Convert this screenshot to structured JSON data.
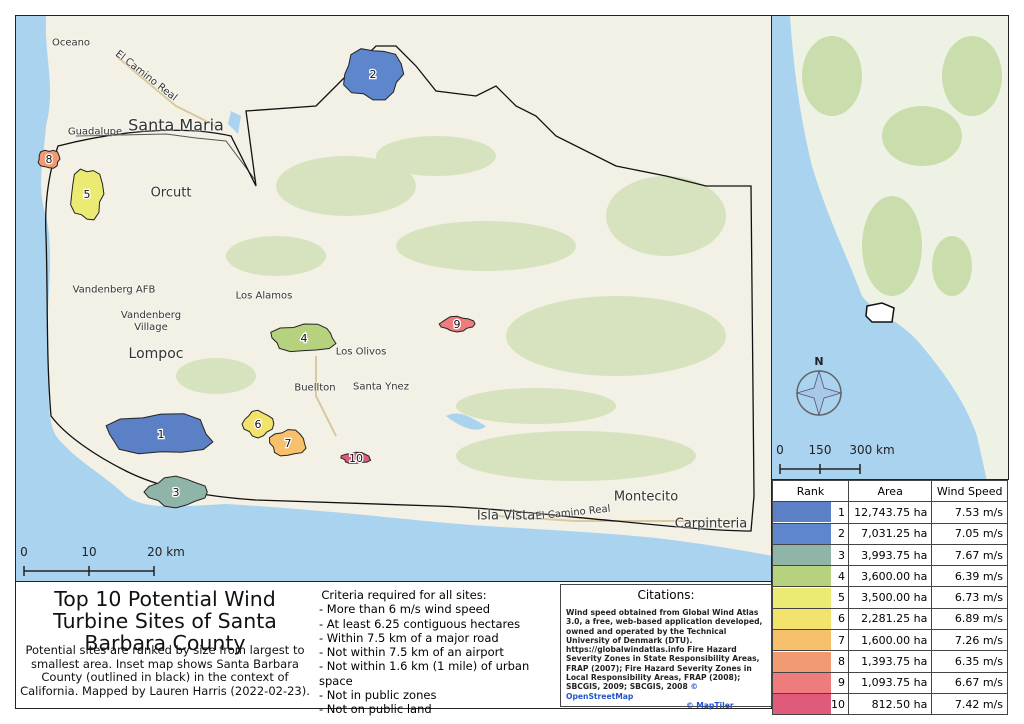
{
  "map": {
    "places": [
      "Oceano",
      "Santa Maria",
      "Guadalupe",
      "Orcutt",
      "Vandenberg AFB",
      "Los Alamos",
      "Vandenberg Village",
      "Lompoc",
      "Los Olivos",
      "Buellton",
      "Santa Ynez",
      "Isla Vista",
      "Montecito",
      "Carpinteria"
    ],
    "roads": [
      "El Camino Real",
      "El Camino Real"
    ],
    "scale": [
      "0",
      "10",
      "20 km"
    ]
  },
  "inset": {
    "compass": "N",
    "scale": [
      "0",
      "150",
      "300 km"
    ]
  },
  "table": {
    "headers": [
      "Rank",
      "Area",
      "Wind Speed"
    ],
    "rows": [
      {
        "rank": 1,
        "color": "#5b80c6",
        "area": "12,743.75 ha",
        "wind": "7.53 m/s"
      },
      {
        "rank": 2,
        "color": "#5d86cc",
        "area": "7,031.25 ha",
        "wind": "7.05 m/s"
      },
      {
        "rank": 3,
        "color": "#8fb5a8",
        "area": "3,993.75 ha",
        "wind": "7.67 m/s"
      },
      {
        "rank": 4,
        "color": "#b6d27e",
        "area": "3,600.00 ha",
        "wind": "6.39 m/s"
      },
      {
        "rank": 5,
        "color": "#ebeb74",
        "area": "3,500.00 ha",
        "wind": "6.73 m/s"
      },
      {
        "rank": 6,
        "color": "#f1e36c",
        "area": "2,281.25 ha",
        "wind": "6.89 m/s"
      },
      {
        "rank": 7,
        "color": "#f7c06c",
        "area": "1,600.00 ha",
        "wind": "7.26 m/s"
      },
      {
        "rank": 8,
        "color": "#f29b73",
        "area": "1,393.75 ha",
        "wind": "6.35 m/s"
      },
      {
        "rank": 9,
        "color": "#ee7c7d",
        "area": "1,093.75 ha",
        "wind": "6.67 m/s"
      },
      {
        "rank": 10,
        "color": "#e05a7c",
        "area": "812.50 ha",
        "wind": "7.42 m/s"
      }
    ]
  },
  "title": "Top 10 Potential Wind Turbine Sites of Santa Barbara County",
  "description": "Potential sites are ranked by size from largest to smallest area. Inset map shows Santa Barbara County (outlined in black) in the context of California. Mapped by Lauren Harris (2022-02-23).",
  "criteria": {
    "heading": "Criteria required for all sites:",
    "items": [
      "- More than 6 m/s wind speed",
      "- At least 6.25 contiguous hectares",
      "- Within 7.5 km of a major road",
      "- Not within 7.5 km of an airport",
      "- Not within 1.6 km (1 mile) of urban space",
      "- Not in public zones",
      "- Not on public land"
    ]
  },
  "citations": {
    "heading": "Citations:",
    "text": "Wind speed obtained from Global Wind Atlas 3.0, a free, web-based application developed, owned and operated by the Technical University of Denmark (DTU). https://globalwindatlas.info Fire Hazard Severity Zones in State Responsibility Areas, FRAP (2007); Fire Hazard Severity Zones in Local Responsibility Areas, FRAP (2008); SBCGIS, 2009; SBCGIS, 2008",
    "links": [
      "© OpenStreetMap",
      "© MapTiler"
    ]
  }
}
